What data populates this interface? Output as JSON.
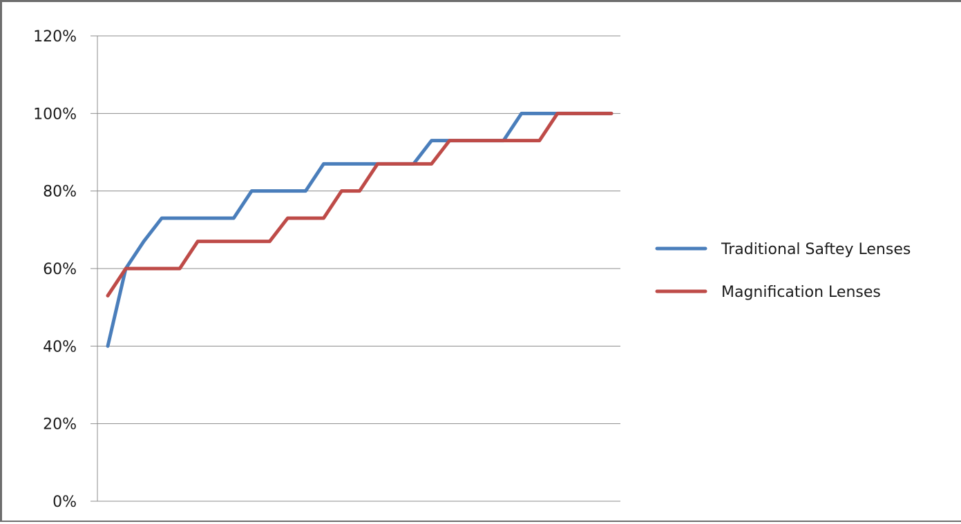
{
  "chart_data": {
    "type": "line",
    "title": "",
    "xlabel": "",
    "ylabel": "",
    "ylim": [
      0,
      120
    ],
    "y_ticks": [
      "0%",
      "20%",
      "40%",
      "60%",
      "80%",
      "100%",
      "120%"
    ],
    "y_tick_values": [
      0,
      20,
      40,
      60,
      80,
      100,
      120
    ],
    "grid": "horizontal",
    "legend_position": "right",
    "x": [
      1,
      2,
      3,
      4,
      5,
      6,
      7,
      8,
      9,
      10,
      11,
      12,
      13,
      14,
      15,
      16,
      17,
      18,
      19,
      20,
      21,
      22,
      23,
      24,
      25,
      26,
      27,
      28,
      29
    ],
    "series": [
      {
        "name": "Traditional Saftey Lenses",
        "color": "#4a7ebb",
        "values": [
          40,
          60,
          67,
          73,
          73,
          73,
          73,
          73,
          80,
          80,
          80,
          80,
          87,
          87,
          87,
          87,
          87,
          87,
          93,
          93,
          93,
          93,
          93,
          100,
          100,
          100,
          100,
          100,
          100
        ]
      },
      {
        "name": "Magnification Lenses",
        "color": "#be4b48",
        "values": [
          53,
          60,
          60,
          60,
          60,
          67,
          67,
          67,
          67,
          67,
          73,
          73,
          73,
          80,
          80,
          87,
          87,
          87,
          87,
          93,
          93,
          93,
          93,
          93,
          93,
          100,
          100,
          100,
          100
        ]
      }
    ]
  }
}
